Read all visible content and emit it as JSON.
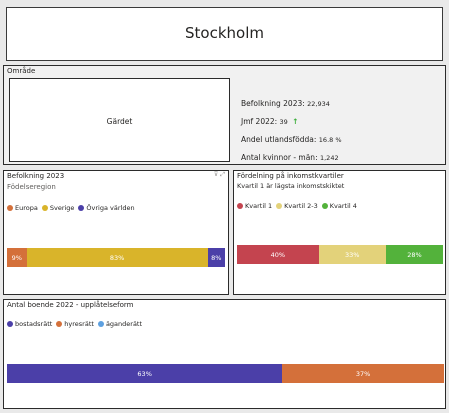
{
  "title": "Stockholm",
  "omrade": {
    "header": "Område",
    "area_name": "Gärdet",
    "stats": [
      {
        "label": "Befolkning 2023:",
        "value": "22,934"
      },
      {
        "label": "Jmf 2022:",
        "value": "39",
        "icon": "arrow-up-icon",
        "icon_color": "#3cae3b"
      },
      {
        "label": "Andel utlandsfödda:",
        "value": "16.8 %"
      },
      {
        "label": "Antal kvinnor - män:",
        "value": "1,242"
      }
    ]
  },
  "befolkning": {
    "header": "Befolkning 2023",
    "subtitle": "Födelseregion",
    "chart_data": {
      "type": "bar",
      "stacked": true,
      "series": [
        {
          "name": "Europa",
          "value": 9,
          "label": "9%",
          "color": "#d4703a"
        },
        {
          "name": "Sverige",
          "value": 83,
          "label": "83%",
          "color": "#d9b42a"
        },
        {
          "name": "Övriga världen",
          "value": 8,
          "label": "8%",
          "color": "#4b3fa8"
        }
      ]
    }
  },
  "fordelning": {
    "header": "Fördelning på inkomstkvartiler",
    "subtitle": "Kvartil 1 är lägsta inkomstskiktet",
    "chart_data": {
      "type": "bar",
      "stacked": true,
      "series": [
        {
          "name": "Kvartil 1",
          "value": 40,
          "label": "40%",
          "color": "#c4444f"
        },
        {
          "name": "Kvartil 2-3",
          "value": 33,
          "label": "33%",
          "color": "#e3d27a"
        },
        {
          "name": "Kvartil 4",
          "value": 28,
          "label": "28%",
          "color": "#53b23b"
        }
      ]
    }
  },
  "boende": {
    "header": "Antal boende 2022 - upplåtelseform",
    "chart_data": {
      "type": "bar",
      "stacked": true,
      "series": [
        {
          "name": "bostadsrätt",
          "value": 63,
          "label": "63%",
          "color": "#4b3fa8"
        },
        {
          "name": "hyresrätt",
          "value": 37,
          "label": "37%",
          "color": "#d4703a"
        },
        {
          "name": "äganderätt",
          "value": 0,
          "label": "",
          "color": "#5da0e0"
        }
      ]
    }
  }
}
